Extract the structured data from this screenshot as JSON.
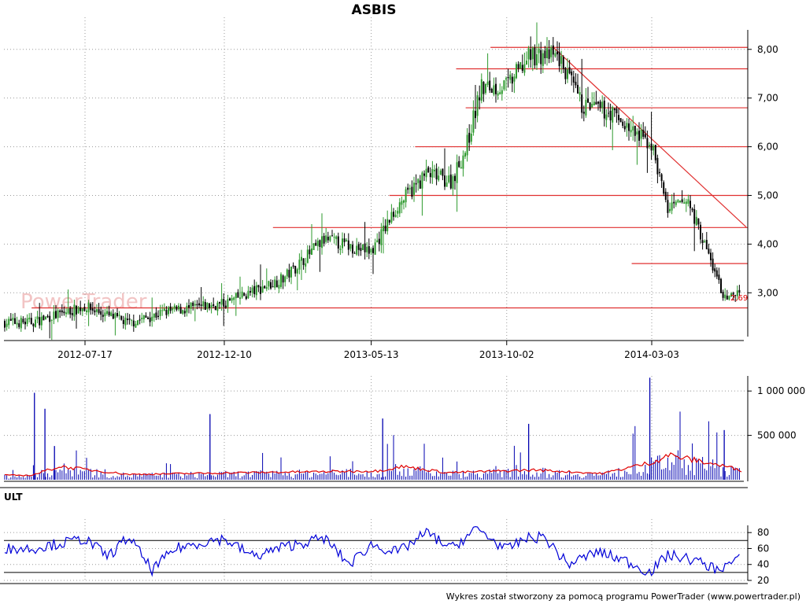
{
  "colors": {
    "background": "#ffffff",
    "candle_up": "#2e9a2e",
    "candle_down": "#000000",
    "support_lines": "#e03030",
    "volume_bars": "#0000b0",
    "volume_average": "#e00000",
    "ult_line": "#0000d8",
    "grid": "#9a9a9a"
  },
  "watermark": {
    "text": "PowerTrader"
  },
  "footer": "Wykres został stworzony za pomocą programu PowerTrader (www.powertrader.pl)",
  "chart_data": [
    {
      "type": "candlestick",
      "title": "ASBIS",
      "x_tick_labels": [
        "2012-07-17",
        "2012-12-10",
        "2013-05-13",
        "2013-10-02",
        "2014-03-03"
      ],
      "y_tick_labels": [
        "3,00",
        "4,00",
        "5,00",
        "6,00",
        "7,00",
        "8,00"
      ],
      "ylim": [
        2.1,
        8.4
      ],
      "y_axis_position": "right",
      "grid": true,
      "price_path_approx": {
        "x": [
          "2012-05-22",
          "2012-07-17",
          "2012-09-01",
          "2012-10-10",
          "2012-12-10",
          "2013-02-10",
          "2013-03-25",
          "2013-05-13",
          "2013-06-10",
          "2013-07-10",
          "2013-08-05",
          "2013-08-20",
          "2013-09-05",
          "2013-10-02",
          "2013-10-28",
          "2013-11-25",
          "2013-12-20",
          "2014-01-20",
          "2014-02-14",
          "2014-03-03",
          "2014-03-20",
          "2014-04-10",
          "2014-05-05",
          "2014-05-20",
          "2014-06-10"
        ],
        "y": [
          2.4,
          2.72,
          2.38,
          2.62,
          2.78,
          3.3,
          4.1,
          3.85,
          4.8,
          5.45,
          5.3,
          5.95,
          7.2,
          7.25,
          7.9,
          7.85,
          6.85,
          6.7,
          6.25,
          6.05,
          4.7,
          4.9,
          3.6,
          2.8,
          3.25
        ]
      },
      "horizontal_levels": [
        {
          "value": 2.69,
          "label": "2,69",
          "from": "2012-05-22"
        },
        {
          "value": 4.34,
          "from": "2013-01-30"
        },
        {
          "value": 5.0,
          "from": "2013-06-01"
        },
        {
          "value": 6.0,
          "from": "2013-06-28"
        },
        {
          "value": 6.8,
          "from": "2013-08-20"
        },
        {
          "value": 7.6,
          "from": "2013-08-10"
        },
        {
          "value": 8.04,
          "from": "2013-09-15"
        },
        {
          "value": 3.6,
          "from": "2014-02-10"
        }
      ],
      "trend_lines": [
        {
          "from": {
            "x": "2013-11-20",
            "y": 8.04
          },
          "to": {
            "x": "2014-06-10",
            "y": 4.35
          }
        }
      ]
    },
    {
      "type": "bar",
      "series_name": "volume",
      "y_tick_labels": [
        "500 000",
        "1 000 000"
      ],
      "ylim": [
        0,
        1170000
      ],
      "y_axis_position": "right",
      "grid": true,
      "spikes_approx": [
        {
          "x": "2012-05-25",
          "value": 980000
        },
        {
          "x": "2012-06-05",
          "value": 800000
        },
        {
          "x": "2012-06-15",
          "value": 380000
        },
        {
          "x": "2012-11-25",
          "value": 740000
        },
        {
          "x": "2013-05-25",
          "value": 690000
        },
        {
          "x": "2013-10-25",
          "value": 630000
        },
        {
          "x": "2014-03-01",
          "value": 1150000
        },
        {
          "x": "2014-05-18",
          "value": 560000
        }
      ],
      "moving_average_approx": {
        "x": [
          "2012-05-22",
          "2012-06-20",
          "2012-09-01",
          "2013-01-01",
          "2013-05-20",
          "2013-06-15",
          "2013-08-01",
          "2013-11-01",
          "2014-01-10",
          "2014-03-05",
          "2014-03-20",
          "2014-05-20",
          "2014-06-10"
        ],
        "y": [
          50000,
          150000,
          60000,
          80000,
          100000,
          150000,
          80000,
          110000,
          70000,
          200000,
          280000,
          150000,
          90000
        ]
      }
    },
    {
      "type": "line",
      "title": "ULT",
      "y_tick_labels": [
        "20",
        "40",
        "60",
        "80"
      ],
      "ylim": [
        20,
        92
      ],
      "y_axis_position": "right",
      "reference_levels": [
        70,
        30
      ],
      "series": [
        {
          "x": [
            "2012-05-22",
            "2012-07-17",
            "2012-08-10",
            "2012-09-01",
            "2012-09-25",
            "2012-10-20",
            "2012-11-25",
            "2012-12-10",
            "2013-01-10",
            "2013-02-10",
            "2013-03-25",
            "2013-04-20",
            "2013-05-13",
            "2013-06-10",
            "2013-07-10",
            "2013-08-05",
            "2013-09-01",
            "2013-10-02",
            "2013-10-20",
            "2013-11-10",
            "2013-12-05",
            "2014-01-05",
            "2014-02-05",
            "2014-03-01",
            "2014-03-20",
            "2014-04-15",
            "2014-05-10",
            "2014-06-10"
          ],
          "y": [
            60,
            72,
            50,
            75,
            33,
            60,
            70,
            72,
            50,
            62,
            73,
            40,
            65,
            55,
            80,
            60,
            85,
            58,
            72,
            75,
            40,
            56,
            44,
            30,
            52,
            46,
            34,
            50
          ]
        }
      ]
    }
  ]
}
